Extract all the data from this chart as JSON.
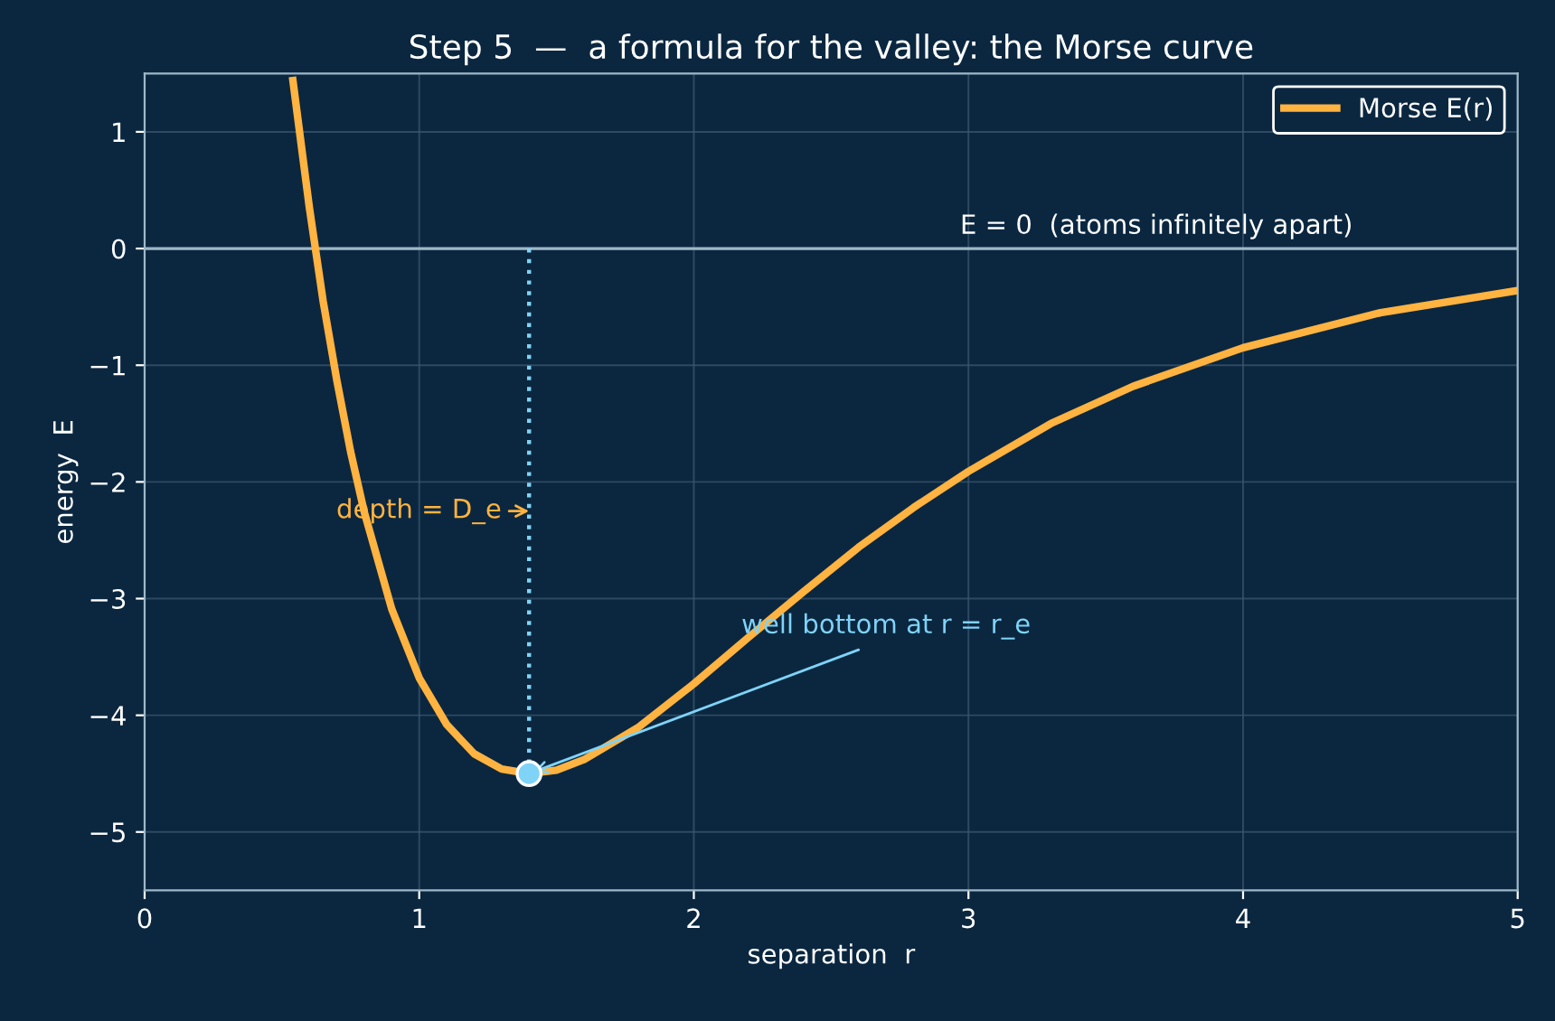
{
  "chart_data": {
    "type": "line",
    "title": "Step 5  —  a formula for the valley: the Morse curve",
    "xlabel": "separation  r",
    "ylabel": "energy  E",
    "xlim": [
      0,
      5
    ],
    "ylim": [
      -5.5,
      1.5
    ],
    "xticks": [
      0,
      1,
      2,
      3,
      4,
      5
    ],
    "yticks": [
      -5,
      -4,
      -3,
      -2,
      -1,
      0,
      1
    ],
    "grid": true,
    "legend": "top right",
    "series": [
      {
        "name": "Morse E(r)",
        "color": "#ffb340",
        "line_style": "solid",
        "x": [
          0.54,
          0.6,
          0.65,
          0.7,
          0.75,
          0.8,
          0.9,
          1.0,
          1.1,
          1.2,
          1.3,
          1.4,
          1.5,
          1.6,
          1.8,
          2.0,
          2.2,
          2.4,
          2.6,
          2.8,
          3.0,
          3.3,
          3.6,
          4.0,
          4.5,
          5.0
        ],
        "values": [
          1.44,
          0.35,
          -0.45,
          -1.13,
          -1.74,
          -2.26,
          -3.09,
          -3.68,
          -4.08,
          -4.33,
          -4.46,
          -4.5,
          -4.47,
          -4.38,
          -4.1,
          -3.73,
          -3.33,
          -2.94,
          -2.56,
          -2.22,
          -1.91,
          -1.5,
          -1.18,
          -0.85,
          -0.55,
          -0.36
        ]
      },
      {
        "type": "line",
        "color": "#7fd3f7",
        "line_style": "dotted",
        "x": [
          1.4,
          1.4
        ],
        "values": [
          0,
          -4.5
        ]
      },
      {
        "type": "scatter",
        "color": "#7fd3f7",
        "marker": "circle",
        "x": [
          1.4
        ],
        "values": [
          -4.5
        ]
      }
    ],
    "ref_lines": [
      {
        "axis": "y",
        "value": 0,
        "label": "E = 0  (atoms infinitely apart)",
        "color": "#9fb8c8",
        "line_style": "solid"
      }
    ],
    "annotations": [
      {
        "text": "depth = D_e",
        "x": 1.4,
        "y": -2.25
      },
      {
        "text": "well bottom at r = r_e",
        "x": 1.4,
        "y": -4.5
      }
    ]
  }
}
